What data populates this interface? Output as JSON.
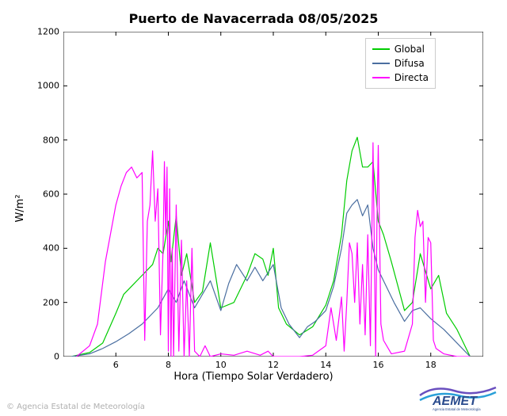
{
  "title": "Puerto de Navacerrada 08/05/2025",
  "ylabel": "W/m²",
  "xlabel": "Hora (Tiempo Solar Verdadero)",
  "copyright": "© Agencia Estatal de Meteorología",
  "logo": {
    "text1": "AEMET",
    "text2": "Agencia Estatal de Meteorología"
  },
  "legend": {
    "items": [
      {
        "label": "Global",
        "color": "#00cc00"
      },
      {
        "label": "Difusa",
        "color": "#4a6ea0"
      },
      {
        "label": "Directa",
        "color": "#ff00ff"
      }
    ]
  },
  "chart": {
    "type": "line",
    "background_color": "#ffffff",
    "axis_color": "#000000",
    "line_width": 1.2,
    "xlim": [
      4,
      20
    ],
    "ylim": [
      0,
      1200
    ],
    "xticks": [
      6,
      8,
      10,
      12,
      14,
      16,
      18
    ],
    "yticks": [
      0,
      200,
      400,
      600,
      800,
      1000,
      1200
    ],
    "series": [
      {
        "name": "Global",
        "color": "#00cc00",
        "x": [
          4.3,
          5.0,
          5.5,
          6.0,
          6.3,
          6.6,
          7.0,
          7.2,
          7.4,
          7.6,
          7.8,
          8.0,
          8.1,
          8.3,
          8.5,
          8.7,
          9.0,
          9.3,
          9.6,
          10.0,
          10.5,
          11.0,
          11.3,
          11.6,
          11.8,
          12.0,
          12.2,
          12.5,
          13.0,
          13.5,
          14.0,
          14.3,
          14.6,
          14.8,
          15.0,
          15.2,
          15.4,
          15.6,
          15.8,
          16.0,
          16.2,
          16.5,
          17.0,
          17.3,
          17.6,
          18.0,
          18.3,
          18.6,
          19.0,
          19.3,
          19.5
        ],
        "y": [
          0,
          15,
          50,
          160,
          230,
          260,
          300,
          320,
          340,
          400,
          380,
          500,
          350,
          520,
          300,
          380,
          200,
          240,
          420,
          180,
          200,
          300,
          380,
          360,
          300,
          400,
          180,
          120,
          80,
          110,
          190,
          280,
          450,
          650,
          760,
          810,
          700,
          700,
          720,
          500,
          450,
          350,
          170,
          200,
          380,
          250,
          300,
          160,
          100,
          40,
          0
        ]
      },
      {
        "name": "Difusa",
        "color": "#4a6ea0",
        "x": [
          4.3,
          5.0,
          5.5,
          6.0,
          6.5,
          7.0,
          7.3,
          7.6,
          8.0,
          8.3,
          8.6,
          9.0,
          9.3,
          9.6,
          10.0,
          10.3,
          10.6,
          11.0,
          11.3,
          11.6,
          12.0,
          12.3,
          12.6,
          13.0,
          13.3,
          13.6,
          14.0,
          14.3,
          14.6,
          14.8,
          15.0,
          15.2,
          15.4,
          15.6,
          15.8,
          16.0,
          16.3,
          16.6,
          17.0,
          17.3,
          17.6,
          18.0,
          18.5,
          19.0,
          19.5
        ],
        "y": [
          0,
          10,
          30,
          55,
          85,
          120,
          150,
          180,
          250,
          200,
          280,
          180,
          230,
          280,
          170,
          270,
          340,
          280,
          330,
          280,
          340,
          180,
          120,
          70,
          110,
          130,
          170,
          260,
          400,
          530,
          560,
          580,
          520,
          560,
          400,
          320,
          260,
          200,
          130,
          170,
          180,
          140,
          100,
          50,
          0
        ]
      },
      {
        "name": "Directa",
        "color": "#ff00ff",
        "x": [
          4.5,
          5.0,
          5.3,
          5.6,
          6.0,
          6.2,
          6.4,
          6.6,
          6.8,
          7.0,
          7.1,
          7.2,
          7.3,
          7.4,
          7.5,
          7.6,
          7.7,
          7.8,
          7.85,
          7.9,
          7.95,
          8.0,
          8.05,
          8.1,
          8.15,
          8.2,
          8.3,
          8.4,
          8.5,
          8.6,
          8.7,
          8.8,
          8.9,
          9.0,
          9.2,
          9.4,
          9.6,
          10.0,
          10.5,
          11.0,
          11.5,
          11.8,
          12.0,
          12.5,
          13.0,
          13.5,
          14.0,
          14.2,
          14.4,
          14.6,
          14.7,
          14.8,
          14.9,
          15.0,
          15.1,
          15.2,
          15.3,
          15.4,
          15.5,
          15.6,
          15.7,
          15.8,
          15.9,
          15.95,
          16.0,
          16.1,
          16.2,
          16.5,
          17.0,
          17.3,
          17.4,
          17.5,
          17.6,
          17.7,
          17.8,
          17.9,
          18.0,
          18.1,
          18.2,
          18.5,
          19.0,
          19.5
        ],
        "y": [
          0,
          40,
          120,
          350,
          560,
          630,
          680,
          700,
          660,
          680,
          60,
          500,
          560,
          760,
          500,
          620,
          80,
          400,
          720,
          450,
          700,
          20,
          620,
          0,
          400,
          0,
          560,
          20,
          430,
          0,
          280,
          0,
          400,
          20,
          0,
          40,
          0,
          10,
          5,
          20,
          5,
          20,
          0,
          0,
          0,
          5,
          40,
          180,
          60,
          220,
          20,
          200,
          420,
          380,
          200,
          420,
          120,
          340,
          80,
          450,
          40,
          790,
          0,
          500,
          780,
          120,
          60,
          10,
          20,
          120,
          440,
          540,
          480,
          500,
          200,
          440,
          420,
          60,
          30,
          10,
          0,
          0
        ]
      }
    ]
  }
}
